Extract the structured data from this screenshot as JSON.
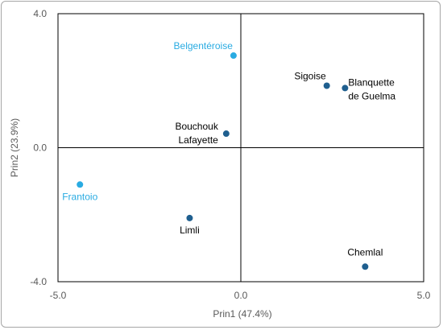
{
  "chart_data": {
    "type": "scatter",
    "title": "",
    "xlabel": "Prin1 (47.4%)",
    "ylabel": "Prin2 (23.9%)",
    "xlim": [
      -5.0,
      5.0
    ],
    "ylim": [
      -4.0,
      4.0
    ],
    "x_ticks": [
      "-5.0",
      "0.0",
      "5.0"
    ],
    "y_ticks": [
      "4.0",
      "0.0",
      "-4.0"
    ],
    "grid": false,
    "colors": {
      "highlight": "#29abe2",
      "default": "#1f5f8f",
      "highlight_label": "#29abe2",
      "default_label": "#000000"
    },
    "points": [
      {
        "name": "Belgentéroise",
        "label_lines": [
          "Belgentéroise"
        ],
        "x": -0.2,
        "y": 2.75,
        "highlight": true,
        "label_pos": "above-left"
      },
      {
        "name": "Sigoise",
        "label_lines": [
          "Sigoise"
        ],
        "x": 2.35,
        "y": 1.85,
        "highlight": false,
        "label_pos": "above-left"
      },
      {
        "name": "Blanquette de Guelma",
        "label_lines": [
          "Blanquette",
          "de Guelma"
        ],
        "x": 2.85,
        "y": 1.78,
        "highlight": false,
        "label_pos": "right"
      },
      {
        "name": "Bouchouk Lafayette",
        "label_lines": [
          "Bouchouk",
          "Lafayette"
        ],
        "x": -0.4,
        "y": 0.42,
        "highlight": false,
        "label_pos": "left"
      },
      {
        "name": "Frantoio",
        "label_lines": [
          "Frantoio"
        ],
        "x": -4.4,
        "y": -1.1,
        "highlight": true,
        "label_pos": "below"
      },
      {
        "name": "Limli",
        "label_lines": [
          "Limli"
        ],
        "x": -1.4,
        "y": -2.1,
        "highlight": false,
        "label_pos": "below"
      },
      {
        "name": "Chemlal",
        "label_lines": [
          "Chemlal"
        ],
        "x": 3.4,
        "y": -3.55,
        "highlight": false,
        "label_pos": "above"
      }
    ]
  }
}
